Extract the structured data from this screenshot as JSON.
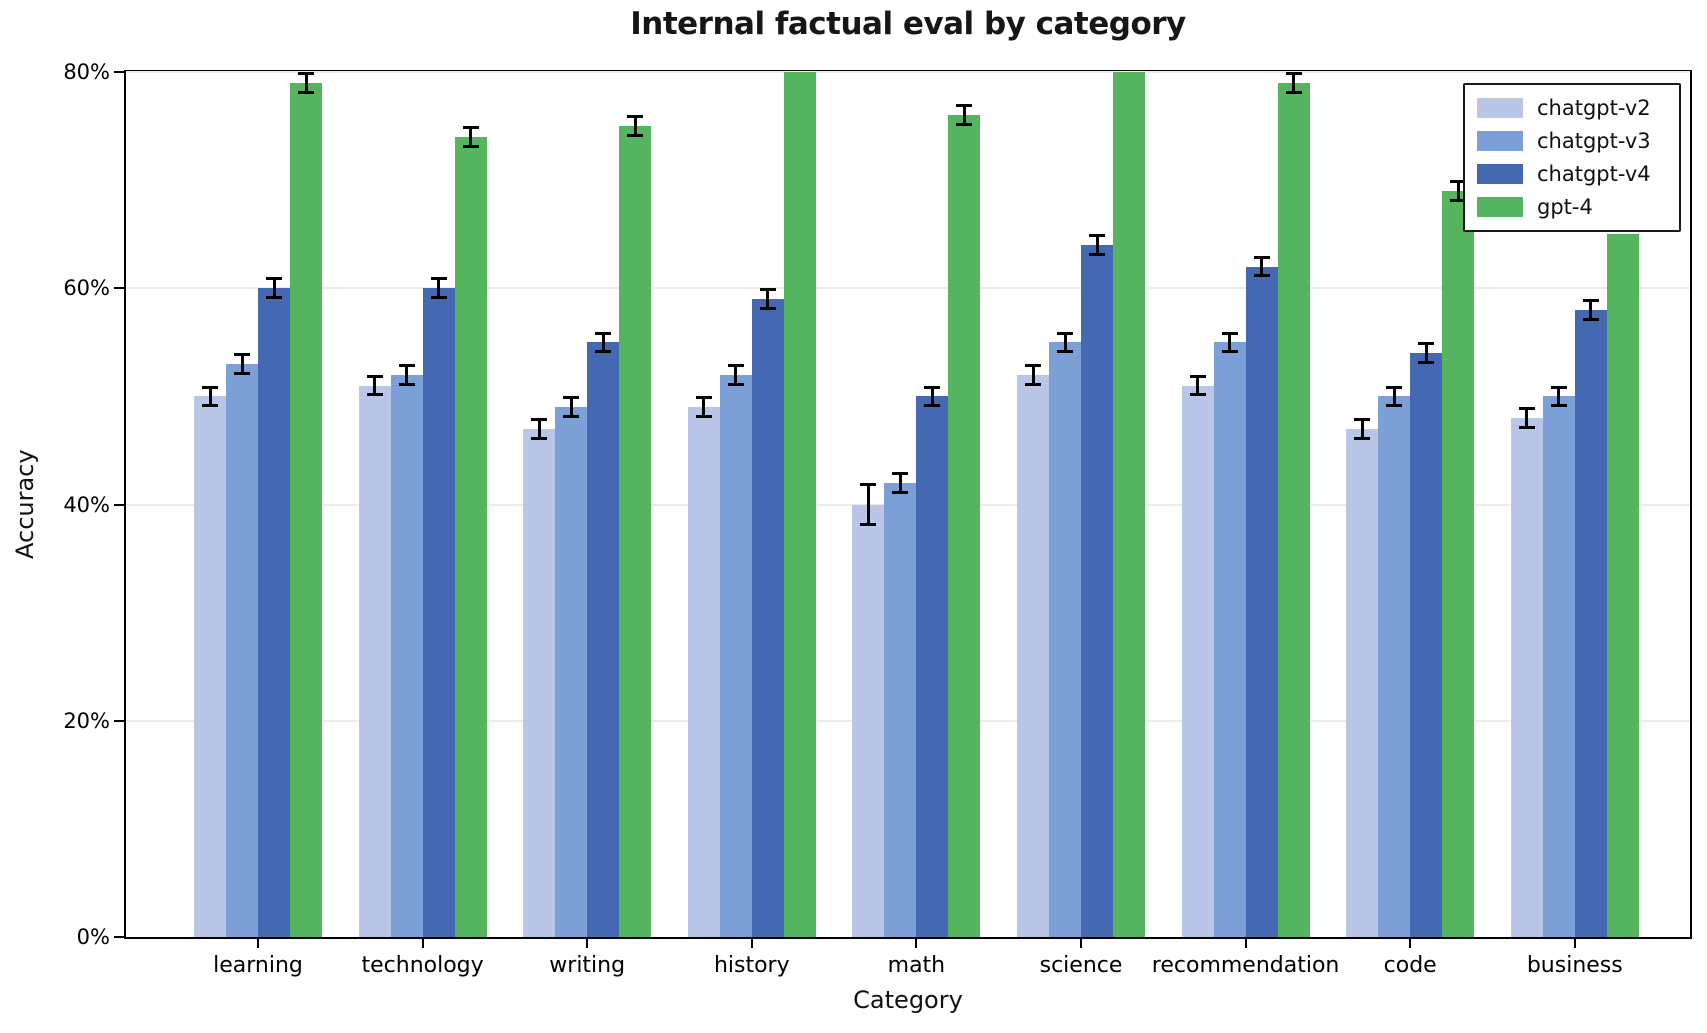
{
  "chart_data": {
    "type": "bar",
    "title": "Internal factual eval by category",
    "xlabel": "Category",
    "ylabel": "Accuracy",
    "categories": [
      "learning",
      "technology",
      "writing",
      "history",
      "math",
      "science",
      "recommendation",
      "code",
      "business"
    ],
    "series": [
      {
        "name": "chatgpt-v2",
        "color": "#b9c6e8",
        "values": [
          50,
          51,
          47,
          49,
          40,
          52,
          51,
          47,
          48
        ],
        "errors": [
          1,
          1,
          1,
          1,
          2,
          1,
          1,
          1,
          1
        ]
      },
      {
        "name": "chatgpt-v3",
        "color": "#7d9fd8",
        "values": [
          53,
          52,
          49,
          52,
          42,
          55,
          55,
          50,
          50
        ],
        "errors": [
          1,
          1,
          1,
          1,
          1,
          1,
          1,
          1,
          1
        ]
      },
      {
        "name": "chatgpt-v4",
        "color": "#4468b2",
        "values": [
          60,
          60,
          55,
          59,
          50,
          64,
          62,
          54,
          58
        ],
        "errors": [
          1,
          1,
          1,
          1,
          1,
          1,
          1,
          1,
          1
        ]
      },
      {
        "name": "gpt-4",
        "color": "#54b45f",
        "values": [
          79,
          74,
          75,
          80,
          76,
          80,
          79,
          69,
          65
        ],
        "errors": [
          1,
          1,
          1,
          0,
          1,
          0,
          1,
          1,
          0
        ],
        "clipped_at_top": [
          false,
          false,
          false,
          true,
          false,
          true,
          false,
          false,
          false
        ]
      }
    ],
    "ylim": [
      0,
      80
    ],
    "ytick_values": [
      0,
      20,
      40,
      60,
      80
    ],
    "yticks": [
      "0%",
      "20%",
      "40%",
      "60%",
      "80%"
    ],
    "grid": "horizontal",
    "legend_position": "upper right",
    "error_bar_color": "#000000"
  }
}
